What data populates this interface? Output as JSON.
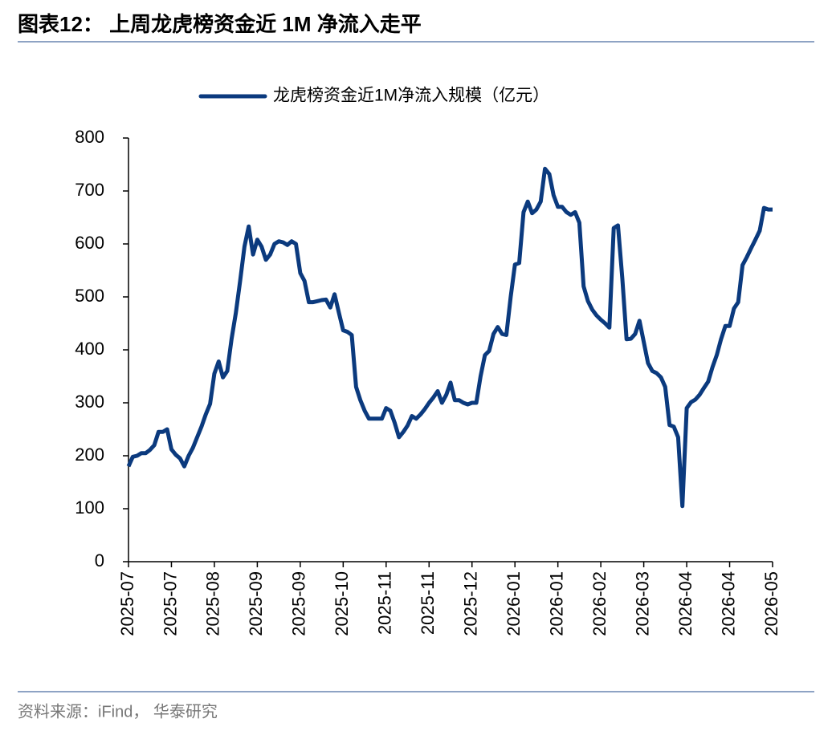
{
  "chart_data": {
    "type": "line",
    "title": "图表12： 上周龙虎榜资金近 1M 净流入走平",
    "source": "资料来源：iFind， 华泰研究",
    "categories": [
      "2025-07",
      null,
      null,
      null,
      null,
      null,
      null,
      null,
      null,
      null,
      "2025-07",
      null,
      null,
      null,
      null,
      null,
      null,
      null,
      null,
      null,
      "2025-08",
      null,
      null,
      null,
      null,
      null,
      null,
      null,
      null,
      null,
      "2025-09",
      null,
      null,
      null,
      null,
      null,
      null,
      null,
      null,
      null,
      "2025-09",
      null,
      null,
      null,
      null,
      null,
      null,
      null,
      null,
      null,
      "2025-10",
      null,
      null,
      null,
      null,
      null,
      null,
      null,
      null,
      null,
      "2025-11",
      null,
      null,
      null,
      null,
      null,
      null,
      null,
      null,
      null,
      "2025-11",
      null,
      null,
      null,
      null,
      null,
      null,
      null,
      null,
      null,
      "2025-12",
      null,
      null,
      null,
      null,
      null,
      null,
      null,
      null,
      null,
      "2026-01",
      null,
      null,
      null,
      null,
      null,
      null,
      null,
      null,
      null,
      "2026-01",
      null,
      null,
      null,
      null,
      null,
      null,
      null,
      null,
      null,
      "2026-02",
      null,
      null,
      null,
      null,
      null,
      null,
      null,
      null,
      null,
      "2026-03",
      null,
      null,
      null,
      null,
      null,
      null,
      null,
      null,
      null,
      "2026-04",
      null,
      null,
      null,
      null,
      null,
      null,
      null,
      null,
      null,
      "2026-04",
      null,
      null,
      null,
      null,
      null,
      null,
      null,
      null,
      null,
      "2026-05"
    ],
    "series": [
      {
        "name": "龙虎榜资金近1M净流入规模（亿元）",
        "color": "#0b3a7e",
        "values": [
          180,
          198,
          200,
          205,
          205,
          211,
          220,
          245,
          245,
          250,
          212,
          202,
          195,
          180,
          200,
          215,
          235,
          255,
          278,
          298,
          355,
          378,
          348,
          360,
          420,
          470,
          530,
          595,
          633,
          580,
          608,
          595,
          570,
          580,
          600,
          605,
          603,
          598,
          605,
          600,
          545,
          530,
          490,
          490,
          492,
          494,
          495,
          480,
          505,
          470,
          437,
          434,
          428,
          330,
          305,
          285,
          270,
          270,
          270,
          270,
          290,
          285,
          262,
          235,
          245,
          257,
          275,
          270,
          278,
          288,
          300,
          310,
          322,
          300,
          315,
          338,
          305,
          305,
          300,
          297,
          300,
          300,
          350,
          390,
          398,
          430,
          443,
          430,
          428,
          500,
          561,
          564,
          660,
          680,
          658,
          665,
          680,
          742,
          732,
          692,
          670,
          670,
          660,
          655,
          660,
          640,
          520,
          492,
          476,
          465,
          457,
          450,
          442,
          630,
          635,
          535,
          420,
          421,
          430,
          455,
          415,
          375,
          360,
          356,
          348,
          330,
          258,
          255,
          235,
          105,
          290,
          301,
          306,
          315,
          328,
          340,
          367,
          390,
          420,
          445,
          445,
          478,
          490,
          560,
          575,
          592,
          608,
          625,
          668,
          665,
          665
        ]
      }
    ],
    "ylim": [
      0,
      800
    ],
    "yticks": [
      0,
      100,
      200,
      300,
      400,
      500,
      600,
      700,
      800
    ],
    "legend": "top"
  }
}
